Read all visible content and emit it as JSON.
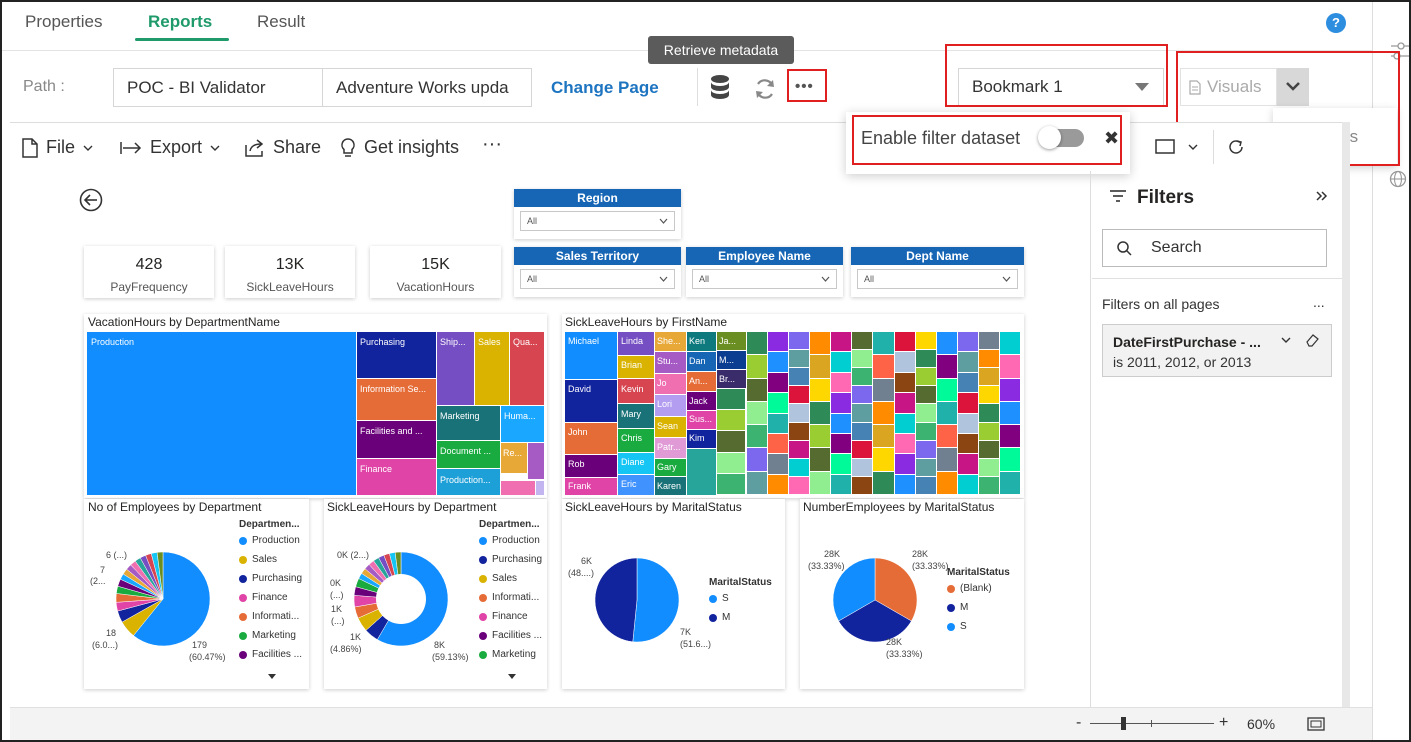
{
  "tabs": [
    {
      "label": "Properties",
      "active": false
    },
    {
      "label": "Reports",
      "active": true
    },
    {
      "label": "Result",
      "active": false
    }
  ],
  "help_label": "?",
  "path": {
    "label": "Path :",
    "workspace": "POC - BI Validator",
    "report": "Adventure Works upda",
    "change_page": "Change Page"
  },
  "tooltip": "Retrieve metadata",
  "more_label": "•••",
  "bookmark": {
    "selected": "Bookmark 1"
  },
  "visuals": {
    "label": "Visuals"
  },
  "filters_popup": "Filters",
  "enable_filter": {
    "label": "Enable filter dataset",
    "enabled": false,
    "close": "✖"
  },
  "toolbar": {
    "file": "File",
    "export": "Export",
    "share": "Share",
    "insights": "Get insights",
    "more": "···"
  },
  "kpis": [
    {
      "value": "428",
      "label": "PayFrequency"
    },
    {
      "value": "13K",
      "label": "SickLeaveHours"
    },
    {
      "value": "15K",
      "label": "VacationHours"
    }
  ],
  "slicers": [
    {
      "title": "Region",
      "value": "All"
    },
    {
      "title": "Sales Territory",
      "value": "All"
    },
    {
      "title": "Employee Name",
      "value": "All"
    },
    {
      "title": "Dept Name",
      "value": "All"
    }
  ],
  "treemap1": {
    "title": "VacationHours by DepartmentName",
    "labels": [
      "Production",
      "Purchasing",
      "Ship...",
      "Sales",
      "Qua...",
      "Information Se...",
      "Marketing",
      "Huma...",
      "Facilities and ...",
      "Document ...",
      "Re...",
      "Finance",
      "Production..."
    ]
  },
  "treemap2": {
    "title": "SickLeaveHours by FirstName",
    "labels": [
      "Michael",
      "Linda",
      "She...",
      "Ken",
      "Ja...",
      "Brian",
      "Stu...",
      "Dan",
      "M...",
      "David",
      "Jo",
      "An...",
      "Br...",
      "Kevin",
      "Lori",
      "Jack",
      "Mary",
      "Sus...",
      "John",
      "Sean",
      "Kim",
      "Chris",
      "Patr...",
      "Rob",
      "Diane",
      "Gary",
      "Frank",
      "Eric",
      "Karen"
    ]
  },
  "pie1": {
    "title": "No of Employees by Department",
    "legend_title": "Departmen...",
    "legend": [
      {
        "label": "Production",
        "color": "#118dff"
      },
      {
        "label": "Sales",
        "color": "#d9b300"
      },
      {
        "label": "Purchasing",
        "color": "#12239e"
      },
      {
        "label": "Finance",
        "color": "#e044a7"
      },
      {
        "label": "Informati...",
        "color": "#e66c37"
      },
      {
        "label": "Marketing",
        "color": "#1aab40"
      },
      {
        "label": "Facilities ...",
        "color": "#6b007b"
      }
    ],
    "data_labels": [
      "6 (...)",
      "7",
      "(2...",
      "18",
      "(6.0...)",
      "179",
      "(60.47%)"
    ]
  },
  "pie2": {
    "title": "SickLeaveHours by Department",
    "legend_title": "Departmen...",
    "legend": [
      {
        "label": "Production",
        "color": "#118dff"
      },
      {
        "label": "Purchasing",
        "color": "#12239e"
      },
      {
        "label": "Sales",
        "color": "#d9b300"
      },
      {
        "label": "Informati...",
        "color": "#e66c37"
      },
      {
        "label": "Finance",
        "color": "#e044a7"
      },
      {
        "label": "Facilities ...",
        "color": "#6b007b"
      },
      {
        "label": "Marketing",
        "color": "#1aab40"
      }
    ],
    "data_labels": [
      "0K (2...)",
      "0K",
      "(...)",
      "1K",
      "(...)",
      "1K",
      "(4.86%)",
      "8K",
      "(59.13%)"
    ]
  },
  "pie3": {
    "title": "SickLeaveHours by MaritalStatus",
    "legend_title": "MaritalStatus",
    "legend": [
      {
        "label": "S",
        "color": "#118dff"
      },
      {
        "label": "M",
        "color": "#12239e"
      }
    ],
    "data_labels": [
      "6K",
      "(48....)",
      "7K",
      "(51.6...)"
    ]
  },
  "pie4": {
    "title": "NumberEmployees by MaritalStatus",
    "legend_title": "MaritalStatus",
    "legend": [
      {
        "label": "(Blank)",
        "color": "#e66c37"
      },
      {
        "label": "M",
        "color": "#12239e"
      },
      {
        "label": "S",
        "color": "#118dff"
      }
    ],
    "data_labels": [
      "28K",
      "(33.33%)",
      "28K",
      "(33.33%)",
      "28K",
      "(33.33%)"
    ]
  },
  "filters_pane": {
    "title": "Filters",
    "search_placeholder": "Search",
    "section": "Filters on all pages",
    "section_more": "...",
    "card_title": "DateFirstPurchase - ...",
    "card_value": "is 2011, 2012, or 2013"
  },
  "zoom": {
    "minus": "-",
    "plus": "+",
    "level": "60%"
  }
}
